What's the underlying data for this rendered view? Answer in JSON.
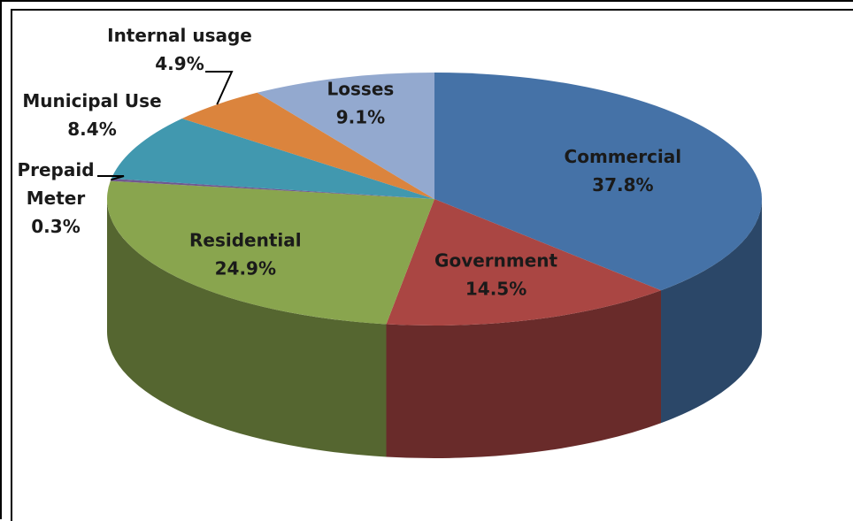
{
  "chart_data": {
    "type": "pie",
    "title": "",
    "slices": [
      {
        "name": "Commercial",
        "value": 37.8,
        "label": "37.8%",
        "color": "#4572a7"
      },
      {
        "name": "Government",
        "value": 14.5,
        "label": "14.5%",
        "color": "#aa4643"
      },
      {
        "name": "Residential",
        "value": 24.9,
        "label": "24.9%",
        "color": "#89a54e"
      },
      {
        "name": "Prepaid Meter",
        "value": 0.3,
        "label": "0.3%",
        "color": "#71588f"
      },
      {
        "name": "Municipal Use",
        "value": 8.4,
        "label": "8.4%",
        "color": "#4198af"
      },
      {
        "name": "Internal usage",
        "value": 4.9,
        "label": "4.9%",
        "color": "#db843d"
      },
      {
        "name": "Losses",
        "value": 9.1,
        "label": "9.1%",
        "color": "#93a9cf"
      }
    ],
    "style": "3d"
  }
}
